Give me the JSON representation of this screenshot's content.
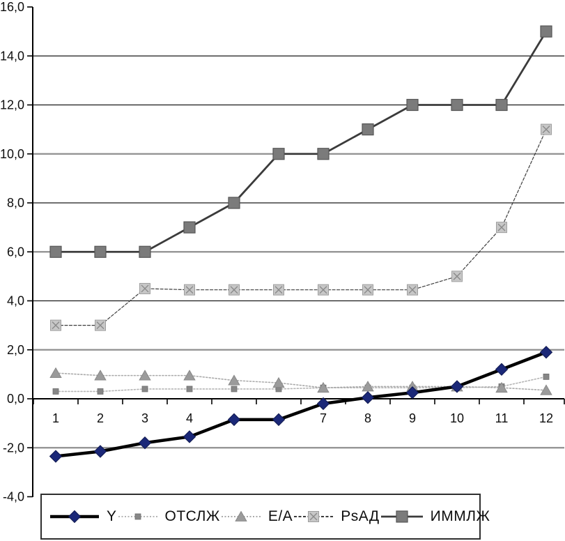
{
  "chart_data": {
    "type": "line",
    "title": "",
    "categories": [
      "1",
      "2",
      "3",
      "4",
      "",
      "",
      "7",
      "8",
      "9",
      "10",
      "11",
      "12"
    ],
    "ylim": [
      -4,
      16
    ],
    "ytick_values": [
      16,
      14,
      12,
      10,
      8,
      6,
      4,
      2,
      0,
      -2,
      -4
    ],
    "ytick_labels": [
      "16,0",
      "14,0",
      "12,0",
      "10,0",
      "8,0",
      "6,0",
      "4,0",
      "2,0",
      "0,0",
      "-2,0",
      "-4,0"
    ],
    "grid": "on",
    "gridlines_black": [
      14,
      12,
      8,
      4
    ],
    "gridlines_gray": [
      10,
      6,
      2,
      -2
    ],
    "legend_position": "bottom",
    "series": [
      {
        "name": "Y",
        "marker": "diamond",
        "marker_color": "#1b2878",
        "marker_edge": "#10194f",
        "line_color": "#000000",
        "line_width": 4.5,
        "dash": "",
        "values": [
          -2.35,
          -2.15,
          -1.8,
          -1.55,
          -0.85,
          -0.85,
          -0.2,
          0.05,
          0.25,
          0.5,
          1.2,
          1.9
        ]
      },
      {
        "name": "ОТСЛЖ",
        "marker": "square-small",
        "marker_color": "#878787",
        "marker_edge": "#6e6e6e",
        "line_color": "#b5b5b5",
        "line_width": 1.6,
        "dash": "2 2.5",
        "values": [
          0.3,
          0.3,
          0.4,
          0.4,
          0.4,
          0.4,
          0.45,
          0.45,
          0.45,
          0.45,
          0.5,
          0.9
        ]
      },
      {
        "name": "E/A",
        "marker": "triangle",
        "marker_color": "#9b9b9b",
        "marker_edge": "#828282",
        "line_color": "#aaaaaa",
        "line_width": 1.6,
        "dash": "2 2.5",
        "values": [
          1.05,
          0.95,
          0.95,
          0.95,
          0.75,
          0.65,
          0.45,
          0.5,
          0.5,
          0.5,
          0.45,
          0.35
        ]
      },
      {
        "name": "PsАД",
        "marker": "x-square",
        "marker_color": "#c7c7c7",
        "marker_edge": "#9e9e9e",
        "line_color": "#3c3c3c",
        "line_width": 1.2,
        "dash": "4 2.5",
        "values": [
          3.0,
          3.0,
          4.5,
          4.45,
          4.45,
          4.45,
          4.45,
          4.45,
          4.45,
          5.0,
          7.0,
          11.0
        ]
      },
      {
        "name": "ИММЛЖ",
        "marker": "square-large",
        "marker_color": "#7b7b7b",
        "marker_edge": "#565656",
        "line_color": "#3b3b3b",
        "line_width": 2.8,
        "dash": "",
        "values": [
          6,
          6,
          6,
          7,
          8,
          10,
          10,
          11,
          12,
          12,
          12,
          15
        ]
      }
    ]
  },
  "colors": {
    "background": "#ffffff",
    "axis": "#000000",
    "grid_black": "#1a1a1a",
    "grid_gray": "#8f8f8f",
    "tick_label": "#0e0e0e"
  }
}
